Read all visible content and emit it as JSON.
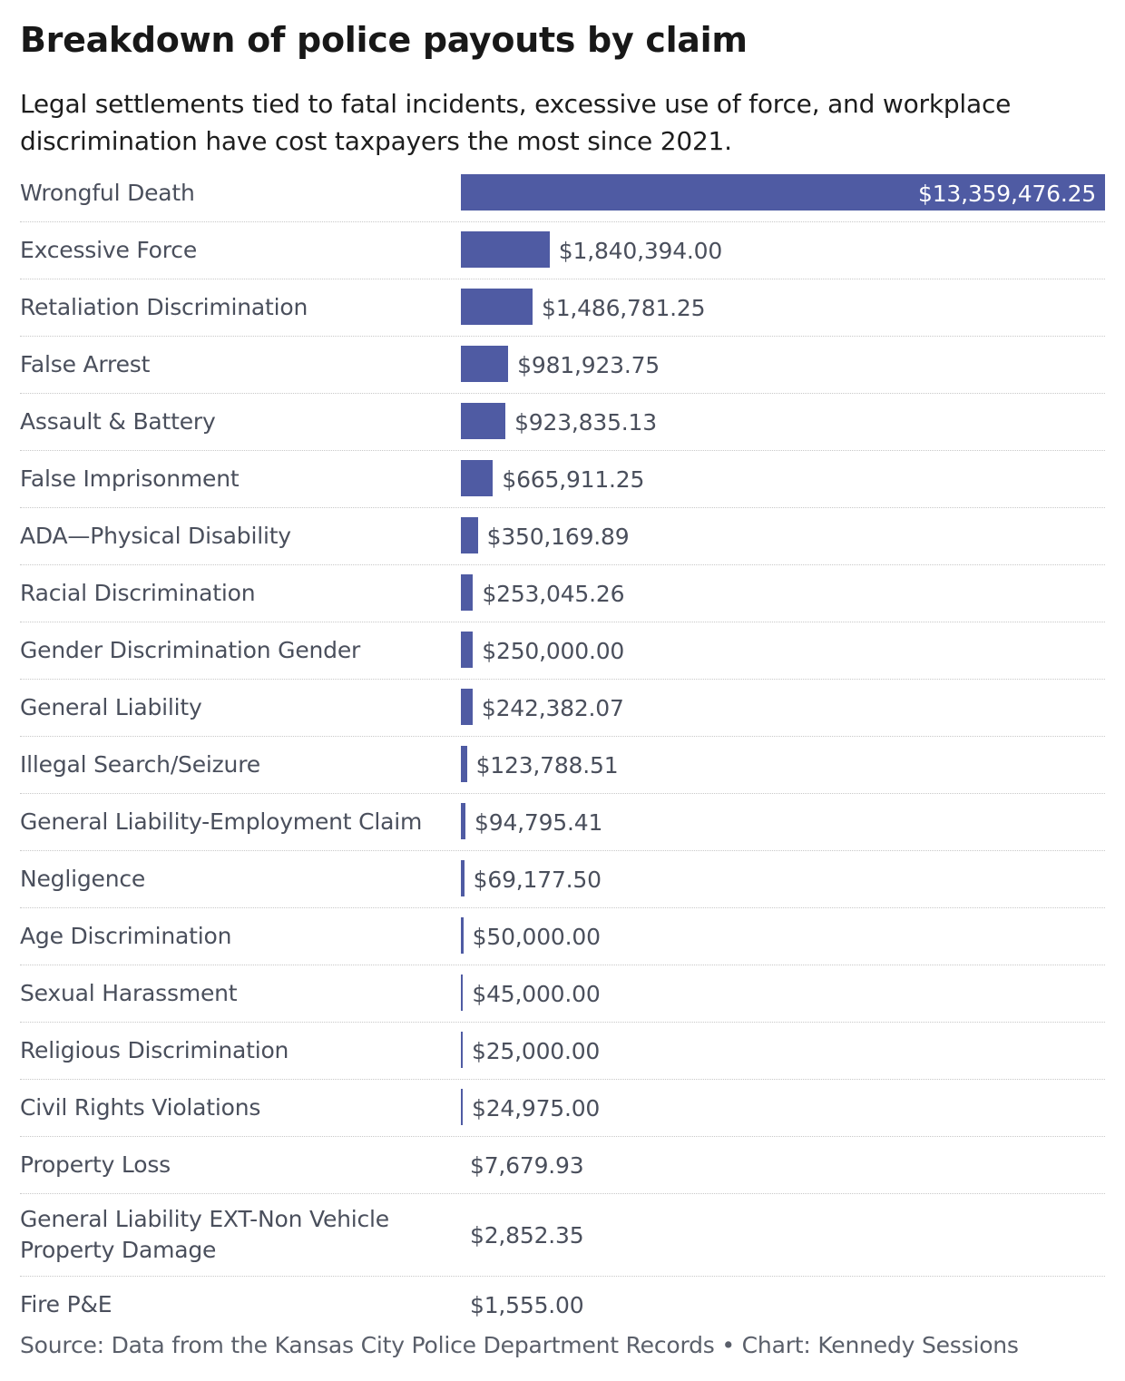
{
  "colors": {
    "bar": "#4f5ba3",
    "label_text": "#4a4f5c",
    "title_text": "#181818"
  },
  "chart_data": {
    "type": "bar",
    "orientation": "horizontal",
    "title": "Breakdown of police payouts by claim",
    "subtitle": "Legal settlements tied to fatal incidents, excessive use of force, and workplace discrimination have cost taxpayers the most since 2021.",
    "source": "Source: Data from the Kansas City Police Department Records • Chart: Kennedy Sessions",
    "categories": [
      "Wrongful Death",
      "Excessive Force",
      "Retaliation Discrimination",
      "False Arrest",
      "Assault & Battery",
      "False Imprisonment",
      "ADA—Physical Disability",
      "Racial Discrimination",
      "Gender Discrimination Gender",
      "General Liability",
      "Illegal Search/Seizure",
      "General Liability-Employment Claim",
      "Negligence",
      "Age Discrimination",
      "Sexual Harassment",
      "Religious Discrimination",
      "Civil Rights Violations",
      "Property Loss",
      "General Liability EXT-Non Vehicle Property Damage",
      "Fire P&E"
    ],
    "values": [
      13359476.25,
      1840394.0,
      1486781.25,
      981923.75,
      923835.13,
      665911.25,
      350169.89,
      253045.26,
      250000.0,
      242382.07,
      123788.51,
      94795.41,
      69177.5,
      50000.0,
      45000.0,
      25000.0,
      24975.0,
      7679.93,
      2852.35,
      1555.0
    ],
    "value_labels": [
      "$13,359,476.25",
      "$1,840,394.00",
      "$1,486,781.25",
      "$981,923.75",
      "$923,835.13",
      "$665,911.25",
      "$350,169.89",
      "$253,045.26",
      "$250,000.00",
      "$242,382.07",
      "$123,788.51",
      "$94,795.41",
      "$69,177.50",
      "$50,000.00",
      "$45,000.00",
      "$25,000.00",
      "$24,975.00",
      "$7,679.93",
      "$2,852.35",
      "$1,555.00"
    ],
    "xlim": [
      0,
      13359476.25
    ]
  }
}
